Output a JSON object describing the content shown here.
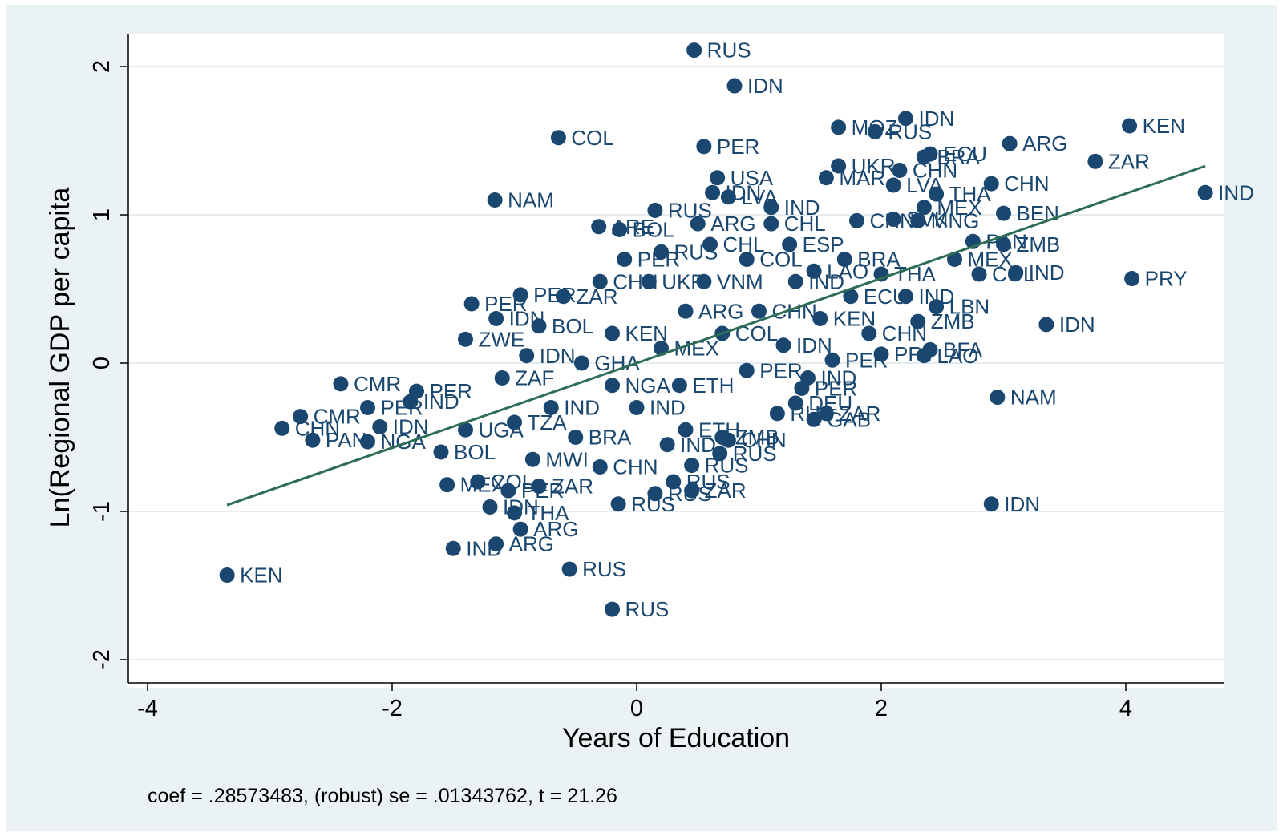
{
  "chart_data": {
    "type": "scatter",
    "title": "",
    "xlabel": "Years of Education",
    "ylabel": "Ln(Regional GDP per capita",
    "xlim": [
      -4.2,
      4.8
    ],
    "ylim": [
      -2.2,
      2.25
    ],
    "xticks": [
      -4,
      -2,
      0,
      2,
      4
    ],
    "xtick_labels": [
      "-4",
      "-2",
      "0",
      "2",
      "4"
    ],
    "yticks": [
      -2,
      -1,
      0,
      1,
      2
    ],
    "ytick_labels": [
      "-2",
      "-1",
      "0",
      "1",
      "2"
    ],
    "grid": "horizontal",
    "note": "coef = .28573483, (robust) se = .01343762, t = 21.26",
    "colors": {
      "points": "#1a476f",
      "fit_line": "#2d6d55",
      "background": "#eaf2f3",
      "plot_area": "#ffffff"
    },
    "fit_line": {
      "slope": 0.28573483,
      "x": [
        -3.35,
        4.65
      ],
      "y": [
        -0.957,
        1.329
      ]
    },
    "series": [
      {
        "points": [
          {
            "x": 0.47,
            "y": 2.11,
            "label": "RUS"
          },
          {
            "x": 0.8,
            "y": 1.87,
            "label": "IDN"
          },
          {
            "x": -0.64,
            "y": 1.52,
            "label": "COL"
          },
          {
            "x": 0.55,
            "y": 1.46,
            "label": "PER"
          },
          {
            "x": 1.65,
            "y": 1.59,
            "label": "MOZ"
          },
          {
            "x": 1.95,
            "y": 1.56,
            "label": "RUS"
          },
          {
            "x": 2.2,
            "y": 1.65,
            "label": "IDN"
          },
          {
            "x": 3.05,
            "y": 1.48,
            "label": "ARG"
          },
          {
            "x": 4.03,
            "y": 1.6,
            "label": "KEN"
          },
          {
            "x": 3.75,
            "y": 1.36,
            "label": "ZAR"
          },
          {
            "x": 2.4,
            "y": 1.41,
            "label": "ECU"
          },
          {
            "x": 2.35,
            "y": 1.39,
            "label": "BRA"
          },
          {
            "x": 1.65,
            "y": 1.33,
            "label": "UKR"
          },
          {
            "x": 2.15,
            "y": 1.3,
            "label": "CHN"
          },
          {
            "x": 1.55,
            "y": 1.25,
            "label": "MAR"
          },
          {
            "x": 0.66,
            "y": 1.25,
            "label": "USA"
          },
          {
            "x": 2.1,
            "y": 1.2,
            "label": "LVA"
          },
          {
            "x": 2.9,
            "y": 1.21,
            "label": "CHN"
          },
          {
            "x": 2.45,
            "y": 1.14,
            "label": "THA"
          },
          {
            "x": 4.65,
            "y": 1.15,
            "label": "IND"
          },
          {
            "x": -1.16,
            "y": 1.1,
            "label": "NAM"
          },
          {
            "x": 0.62,
            "y": 1.15,
            "label": "IDN"
          },
          {
            "x": 0.75,
            "y": 1.12,
            "label": "LVA"
          },
          {
            "x": 1.1,
            "y": 1.05,
            "label": "IND"
          },
          {
            "x": 2.35,
            "y": 1.05,
            "label": "MEX"
          },
          {
            "x": 3.0,
            "y": 1.01,
            "label": "BEN"
          },
          {
            "x": 0.15,
            "y": 1.03,
            "label": "RUS"
          },
          {
            "x": 0.5,
            "y": 0.94,
            "label": "ARG"
          },
          {
            "x": 1.1,
            "y": 0.94,
            "label": "CHL"
          },
          {
            "x": 1.8,
            "y": 0.96,
            "label": "CHN"
          },
          {
            "x": 2.1,
            "y": 0.97,
            "label": "SVK"
          },
          {
            "x": 2.3,
            "y": 0.96,
            "label": "MNG"
          },
          {
            "x": -0.31,
            "y": 0.92,
            "label": "ARE"
          },
          {
            "x": -0.14,
            "y": 0.9,
            "label": "BOL"
          },
          {
            "x": 2.75,
            "y": 0.82,
            "label": "PAN"
          },
          {
            "x": 3.0,
            "y": 0.8,
            "label": "ZMB"
          },
          {
            "x": 4.05,
            "y": 0.57,
            "label": "PRY"
          },
          {
            "x": 3.35,
            "y": 0.26,
            "label": "IDN"
          },
          {
            "x": 2.8,
            "y": 0.6,
            "label": "COL"
          },
          {
            "x": 3.1,
            "y": 0.61,
            "label": "IND"
          },
          {
            "x": 2.45,
            "y": 0.38,
            "label": "LBN"
          },
          {
            "x": 2.3,
            "y": 0.28,
            "label": "ZMB"
          },
          {
            "x": 2.4,
            "y": 0.09,
            "label": "BFA"
          },
          {
            "x": 2.35,
            "y": 0.05,
            "label": "LAO"
          },
          {
            "x": 2.0,
            "y": 0.06,
            "label": "PRY"
          },
          {
            "x": 1.6,
            "y": 0.02,
            "label": "PER"
          },
          {
            "x": 2.95,
            "y": -0.23,
            "label": "NAM"
          },
          {
            "x": 2.9,
            "y": -0.95,
            "label": "IDN"
          },
          {
            "x": -1.35,
            "y": 0.4,
            "label": "PER"
          },
          {
            "x": -0.95,
            "y": 0.46,
            "label": "PER"
          },
          {
            "x": -1.15,
            "y": 0.3,
            "label": "IDN"
          },
          {
            "x": -1.4,
            "y": 0.16,
            "label": "ZWE"
          },
          {
            "x": -2.42,
            "y": -0.14,
            "label": "CMR"
          },
          {
            "x": -1.8,
            "y": -0.19,
            "label": "PER"
          },
          {
            "x": -2.75,
            "y": -0.36,
            "label": "CMR"
          },
          {
            "x": -2.2,
            "y": -0.3,
            "label": "PER"
          },
          {
            "x": -2.9,
            "y": -0.44,
            "label": "CHN"
          },
          {
            "x": -2.1,
            "y": -0.43,
            "label": "IDN"
          },
          {
            "x": -2.65,
            "y": -0.52,
            "label": "PAN"
          },
          {
            "x": -2.2,
            "y": -0.53,
            "label": "NGA"
          },
          {
            "x": -1.85,
            "y": -0.26,
            "label": "IND"
          },
          {
            "x": -1.55,
            "y": -0.82,
            "label": "MEX"
          },
          {
            "x": -1.3,
            "y": -0.8,
            "label": "COL"
          },
          {
            "x": -1.05,
            "y": -0.86,
            "label": "PER"
          },
          {
            "x": -0.8,
            "y": -0.83,
            "label": "ZAR"
          },
          {
            "x": -1.2,
            "y": -0.97,
            "label": "IDN"
          },
          {
            "x": -1.0,
            "y": -1.01,
            "label": "THA"
          },
          {
            "x": -0.95,
            "y": -1.12,
            "label": "ARG"
          },
          {
            "x": -1.5,
            "y": -1.25,
            "label": "IND"
          },
          {
            "x": -1.15,
            "y": -1.22,
            "label": "ARG"
          },
          {
            "x": -0.55,
            "y": -1.39,
            "label": "RUS"
          },
          {
            "x": -0.2,
            "y": -1.66,
            "label": "RUS"
          },
          {
            "x": -3.35,
            "y": -1.43,
            "label": "KEN"
          },
          {
            "x": 0.68,
            "y": -0.61,
            "label": "RUS"
          },
          {
            "x": 0.45,
            "y": -0.69,
            "label": "RUS"
          },
          {
            "x": 0.15,
            "y": -0.88,
            "label": "RUS"
          },
          {
            "x": 0.45,
            "y": -0.86,
            "label": "ZAR"
          },
          {
            "x": 0.3,
            "y": -0.8,
            "label": "RUS"
          },
          {
            "x": 1.45,
            "y": -0.38,
            "label": "GAB"
          },
          {
            "x": 1.55,
            "y": -0.34,
            "label": "ZAR"
          },
          {
            "x": 1.4,
            "y": -0.1,
            "label": "IND"
          },
          {
            "x": 1.35,
            "y": -0.17,
            "label": "PER"
          },
          {
            "x": 1.3,
            "y": -0.27,
            "label": "DEU"
          },
          {
            "x": 1.15,
            "y": -0.34,
            "label": "RUS"
          },
          {
            "x": 0.75,
            "y": -0.52,
            "label": "CHN"
          },
          {
            "x": 0.7,
            "y": -0.5,
            "label": "ZMB"
          },
          {
            "x": 0.4,
            "y": -0.45,
            "label": "ETH"
          },
          {
            "x": 0.25,
            "y": -0.55,
            "label": "IND"
          },
          {
            "x": 1.2,
            "y": 0.12,
            "label": "IDN"
          },
          {
            "x": 1.9,
            "y": 0.2,
            "label": "CHN"
          },
          {
            "x": 1.5,
            "y": 0.3,
            "label": "KEN"
          },
          {
            "x": 1.3,
            "y": 0.55,
            "label": "IND"
          },
          {
            "x": 0.9,
            "y": 0.7,
            "label": "COL"
          },
          {
            "x": 0.6,
            "y": 0.8,
            "label": "CHL"
          },
          {
            "x": 0.2,
            "y": 0.75,
            "label": "RUS"
          },
          {
            "x": -0.1,
            "y": 0.7,
            "label": "PER"
          },
          {
            "x": -0.3,
            "y": 0.55,
            "label": "CHN"
          },
          {
            "x": -0.6,
            "y": 0.45,
            "label": "ZAR"
          },
          {
            "x": -0.8,
            "y": 0.25,
            "label": "BOL"
          },
          {
            "x": -0.9,
            "y": 0.05,
            "label": "IDN"
          },
          {
            "x": -1.1,
            "y": -0.1,
            "label": "ZAF"
          },
          {
            "x": -0.7,
            "y": -0.3,
            "label": "IND"
          },
          {
            "x": -0.5,
            "y": -0.5,
            "label": "BRA"
          },
          {
            "x": -0.3,
            "y": -0.7,
            "label": "CHN"
          },
          {
            "x": 0.0,
            "y": -0.3,
            "label": "IND"
          },
          {
            "x": 0.2,
            "y": 0.1,
            "label": "MEX"
          },
          {
            "x": 0.4,
            "y": 0.35,
            "label": "ARG"
          },
          {
            "x": 0.7,
            "y": 0.2,
            "label": "COL"
          },
          {
            "x": 0.9,
            "y": -0.05,
            "label": "PER"
          },
          {
            "x": 1.0,
            "y": 0.35,
            "label": "CHN"
          },
          {
            "x": 1.7,
            "y": 0.7,
            "label": "BRA"
          },
          {
            "x": 2.0,
            "y": 0.6,
            "label": "THA"
          },
          {
            "x": 2.2,
            "y": 0.45,
            "label": "IND"
          },
          {
            "x": 2.6,
            "y": 0.7,
            "label": "MEX"
          },
          {
            "x": 1.75,
            "y": 0.45,
            "label": "ECU"
          },
          {
            "x": 1.45,
            "y": 0.62,
            "label": "LAO"
          },
          {
            "x": 0.1,
            "y": 0.55,
            "label": "UKR"
          },
          {
            "x": -0.2,
            "y": 0.2,
            "label": "KEN"
          },
          {
            "x": -0.45,
            "y": 0.0,
            "label": "GHA"
          },
          {
            "x": -0.2,
            "y": -0.15,
            "label": "NGA"
          },
          {
            "x": 0.35,
            "y": -0.15,
            "label": "ETH"
          },
          {
            "x": 0.55,
            "y": 0.55,
            "label": "VNM"
          },
          {
            "x": 1.25,
            "y": 0.8,
            "label": "ESP"
          },
          {
            "x": -1.6,
            "y": -0.6,
            "label": "BOL"
          },
          {
            "x": -1.4,
            "y": -0.45,
            "label": "UGA"
          },
          {
            "x": -1.0,
            "y": -0.4,
            "label": "TZA"
          },
          {
            "x": -0.85,
            "y": -0.65,
            "label": "MWI"
          },
          {
            "x": -0.15,
            "y": -0.95,
            "label": "RUS"
          }
        ]
      }
    ]
  }
}
